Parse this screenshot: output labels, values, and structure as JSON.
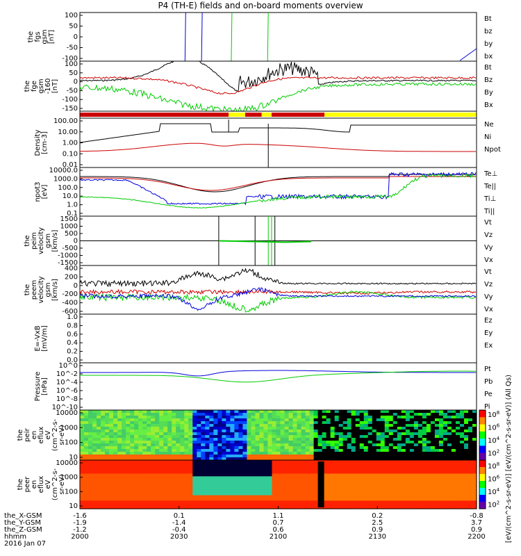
{
  "title": "P4 (TH-E) fields and on-board moments overview",
  "colors": {
    "black": "#000000",
    "red": "#cc0000",
    "green": "#00cc00",
    "blue": "#0000dd",
    "yellow": "#ffff00"
  },
  "chart_data": [
    {
      "type": "line",
      "id": "fgs",
      "ylabel": [
        "the",
        "fgs",
        "gsm",
        "[nT]"
      ],
      "yticks": [
        "100",
        "50",
        "0",
        "-50",
        "-100"
      ],
      "ylim": [
        -100,
        100
      ],
      "legend": [
        {
          "name": "Bt",
          "color": "black"
        },
        {
          "name": "bz",
          "color": "red"
        },
        {
          "name": "by",
          "color": "green"
        },
        {
          "name": "bx",
          "color": "blue"
        }
      ]
    },
    {
      "type": "line",
      "id": "fge",
      "ylabel": [
        "the",
        "fge",
        "gsm",
        "-160",
        "[nT]"
      ],
      "yticks": [
        "100",
        "50",
        "0",
        "-50",
        "-100",
        "-150"
      ],
      "ylim": [
        -170,
        110
      ],
      "legend": [
        {
          "name": "Bt",
          "color": "black"
        },
        {
          "name": "Bz",
          "color": "red"
        },
        {
          "name": "By",
          "color": "green"
        },
        {
          "name": "Bx",
          "color": "blue"
        }
      ]
    },
    {
      "type": "bar",
      "id": "mode",
      "segments": [
        {
          "x": [
            2000,
            2045
          ],
          "color": "red"
        },
        {
          "x": [
            2045,
            2050
          ],
          "color": "yellow"
        },
        {
          "x": [
            2050,
            2055
          ],
          "color": "red"
        },
        {
          "x": [
            2055,
            2058
          ],
          "color": "yellow"
        },
        {
          "x": [
            2058,
            2114
          ],
          "color": "red"
        },
        {
          "x": [
            2114,
            2200
          ],
          "color": "yellow"
        }
      ]
    },
    {
      "type": "line",
      "id": "density",
      "ylabel": [
        "Density",
        "[cm-3]"
      ],
      "yticks": [
        "100.00",
        "10.00",
        "1.00",
        "0.10",
        "0.01"
      ],
      "log": true,
      "legend": [
        {
          "name": "Ne",
          "color": "red"
        },
        {
          "name": "Ni",
          "color": "black"
        },
        {
          "name": "Npot",
          "color": "blue"
        }
      ]
    },
    {
      "type": "line",
      "id": "temp",
      "ylabel": [
        "npot3",
        "[eV]"
      ],
      "yticks": [
        "10000.0",
        "1000.0",
        "100.0",
        "10.0",
        "1.0",
        "0.1"
      ],
      "log": true,
      "legend": [
        {
          "name": "Te⊥",
          "color": "red"
        },
        {
          "name": "Te||",
          "color": "black"
        },
        {
          "name": "Ti⊥",
          "color": "blue"
        },
        {
          "name": "Ti||",
          "color": "green"
        }
      ]
    },
    {
      "type": "line",
      "id": "peim",
      "ylabel": [
        "the",
        "peim",
        "velocity",
        "gsm",
        "[km/s]"
      ],
      "yticks": [
        "1500",
        "1000",
        "500",
        "0",
        "-500",
        "-1000",
        "-1500"
      ],
      "ylim": [
        -1500,
        1500
      ],
      "legend": [
        {
          "name": "Vt",
          "color": "black"
        },
        {
          "name": "Vz",
          "color": "red"
        },
        {
          "name": "Vy",
          "color": "green"
        },
        {
          "name": "Vx",
          "color": "blue"
        }
      ]
    },
    {
      "type": "line",
      "id": "peem",
      "ylabel": [
        "the",
        "peem",
        "velocity",
        "gsm",
        "[km/s]"
      ],
      "yticks": [
        "400",
        "200",
        "0",
        "-200",
        "-400",
        "-600"
      ],
      "ylim": [
        -650,
        450
      ],
      "legend": [
        {
          "name": "Vt",
          "color": "black"
        },
        {
          "name": "Vz",
          "color": "red"
        },
        {
          "name": "Vy",
          "color": "green"
        },
        {
          "name": "Vx",
          "color": "blue"
        }
      ]
    },
    {
      "type": "line",
      "id": "efield",
      "ylabel": [
        "E=-VxB",
        "[mV/m]"
      ],
      "yticks": [
        "1.0",
        "0.8",
        "0.6",
        "0.4",
        "0.2",
        "0.0"
      ],
      "ylim": [
        0,
        1
      ],
      "legend": [
        {
          "name": "Ez",
          "color": "red"
        },
        {
          "name": "Ey",
          "color": "green"
        },
        {
          "name": "Ex",
          "color": "blue"
        }
      ]
    },
    {
      "type": "line",
      "id": "pressure",
      "ylabel": [
        "Pressure",
        "[nPa]"
      ],
      "yticks": [
        "10^0",
        "10^-2",
        "10^-4",
        "10^-6",
        "10^-8",
        "10^-10"
      ],
      "log": true,
      "legend": [
        {
          "name": "Pt",
          "color": "black"
        },
        {
          "name": "Pb",
          "color": "red"
        },
        {
          "name": "Pe",
          "color": "green"
        },
        {
          "name": "Pi",
          "color": "blue"
        }
      ]
    },
    {
      "type": "heatmap",
      "id": "peir",
      "ylabel": [
        "the",
        "peir",
        "en",
        "eflux",
        "eV",
        "(cm^2-s-",
        "sr-eV)"
      ],
      "yticks": [
        "10000",
        "1000",
        "100",
        "10"
      ]
    },
    {
      "type": "heatmap",
      "id": "peer",
      "ylabel": [
        "the",
        "peer",
        "en",
        "eflux",
        "eV",
        "(cm^2-s-",
        "sr-eV)"
      ],
      "yticks": [
        "10000",
        "1000",
        "100",
        "10"
      ]
    }
  ],
  "colorbar": {
    "ticks": [
      "10^8",
      "10^6",
      "10^4",
      "10^2",
      "10^8",
      "10^6",
      "10^4",
      "10^2"
    ],
    "label": "[eV/(cm^2-s-sr-eV)]   [eV/(cm^2-s-sr-eV)] (All Qs)"
  },
  "footer": {
    "row_labels": [
      "the_X-GSM",
      "the_Y-GSM",
      "the_Z-GSM",
      "hhmm",
      "2016 Jan 07"
    ],
    "columns": [
      {
        "x": "2000",
        "values": [
          "-1.6",
          "-1.9",
          "-1.2",
          "2000"
        ]
      },
      {
        "x": "2030",
        "values": [
          "0.1",
          "-1.4",
          "-0.4",
          "2030"
        ]
      },
      {
        "x": "2100",
        "values": [
          "1.1",
          "0.7",
          "0.6",
          "2100"
        ]
      },
      {
        "x": "2130",
        "values": [
          "0.2",
          "2.5",
          "0.9",
          "2130"
        ]
      },
      {
        "x": "2200",
        "values": [
          "-0.8",
          "3.7",
          "0.9",
          "2200"
        ]
      }
    ]
  }
}
